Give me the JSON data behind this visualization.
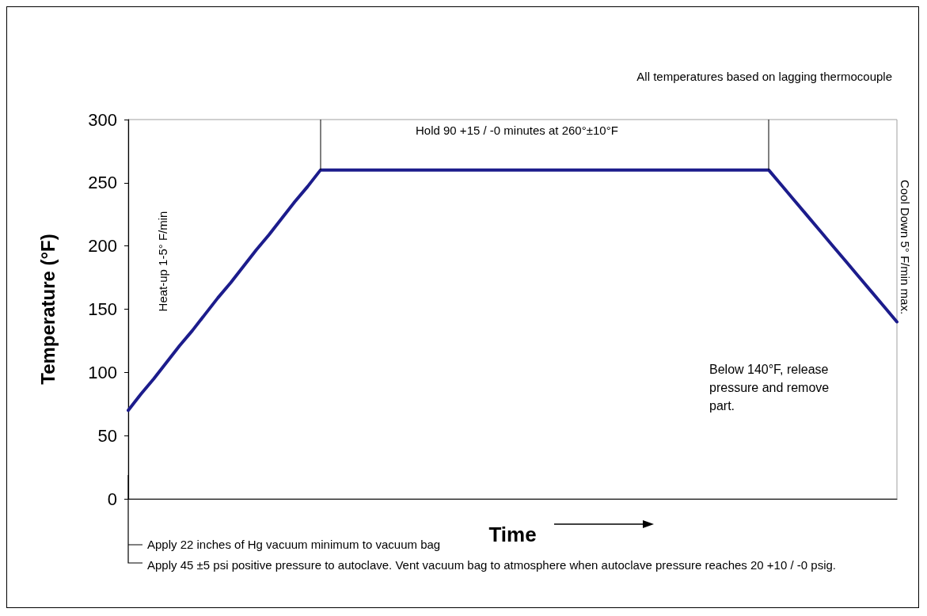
{
  "chart_data": {
    "type": "line",
    "ylabel": "Temperature (°F)",
    "xlabel": "Time",
    "categories": [
      null,
      null,
      null,
      null,
      null,
      null,
      null,
      null,
      null,
      null,
      null,
      null,
      null,
      null,
      null,
      null,
      null,
      null,
      null,
      null,
      null,
      null,
      null,
      null,
      null,
      null,
      null,
      null,
      null,
      null,
      null,
      null,
      null,
      null,
      null,
      null,
      null,
      null,
      null,
      null,
      null,
      null,
      null,
      null,
      null,
      null,
      null,
      null,
      null,
      null,
      null,
      null,
      null,
      null,
      null,
      null,
      null,
      null,
      null,
      null,
      null
    ],
    "series": [
      {
        "color": "#1c1c8c",
        "values": [
          70,
          83,
          95,
          108,
          121,
          133,
          146,
          159,
          171,
          184,
          197,
          209,
          222,
          235,
          247,
          260,
          260,
          260,
          260,
          260,
          260,
          260,
          260,
          260,
          260,
          260,
          260,
          260,
          260,
          260,
          260,
          260,
          260,
          260,
          260,
          260,
          260,
          260,
          260,
          260,
          260,
          260,
          260,
          260,
          260,
          260,
          260,
          260,
          260,
          260,
          260,
          248,
          236,
          224,
          212,
          200,
          188,
          176,
          164,
          152,
          140
        ]
      }
    ],
    "ylim": [
      0,
      300
    ],
    "yticks": [
      0,
      50,
      100,
      150,
      200,
      250,
      300
    ],
    "grid": false,
    "marker": "none",
    "line_style": "solid",
    "tick_labels": "y",
    "annotations": [
      "All temperatures based on lagging thermocouple",
      "Hold 90 +15 / -0 minutes at 260°±10°F",
      "Heat-up 1-5° F/min",
      "Cool Down 5° F/min max.",
      "Below 140°F, release pressure and remove part.",
      "Apply 22 inches of Hg vacuum minimum to vacuum bag",
      "Apply 45 ±5 psi positive pressure to autoclave. Vent vacuum bag to atmosphere when autoclave pressure reaches 20 +10 / -0 psig."
    ]
  }
}
